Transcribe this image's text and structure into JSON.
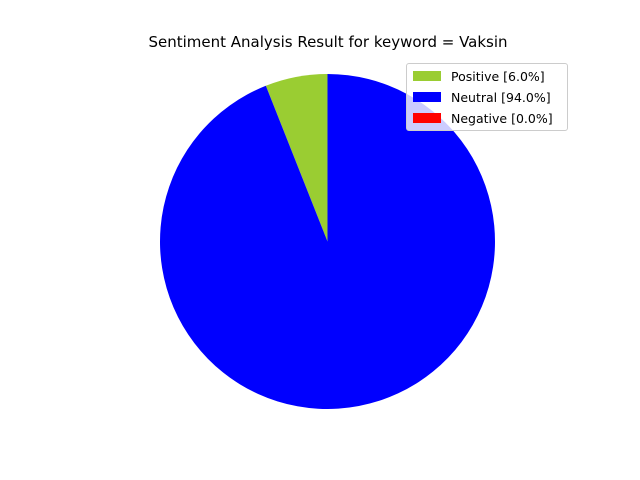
{
  "chart_data": {
    "type": "pie",
    "title": "Sentiment Analysis Result for keyword = Vaksin",
    "slices": [
      {
        "label": "Positive",
        "value": 6.0,
        "color": "#9acd32"
      },
      {
        "label": "Neutral",
        "value": 94.0,
        "color": "#0000ff"
      },
      {
        "label": "Negative",
        "value": 0.0,
        "color": "#ff0000"
      }
    ],
    "start_angle_deg": 90,
    "direction": "counterclockwise",
    "legend": {
      "position": "top-right",
      "entries": [
        "Positive [6.0%]",
        "Neutral [94.0%]",
        "Negative [0.0%]"
      ]
    }
  }
}
